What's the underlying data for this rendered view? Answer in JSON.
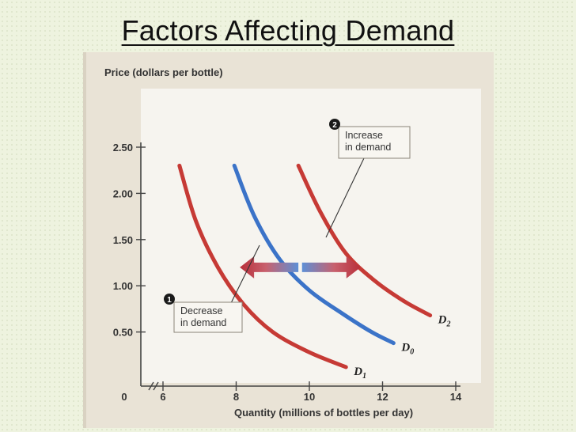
{
  "slide": {
    "title": "Factors Affecting Demand"
  },
  "chart_data": {
    "type": "line",
    "ylabel": "Price (dollars per bottle)",
    "xlabel": "Quantity (millions of bottles per day)",
    "xlim": [
      6,
      14
    ],
    "ylim": [
      0,
      2.5
    ],
    "x_ticks": [
      "0",
      "6",
      "8",
      "10",
      "12",
      "14"
    ],
    "y_ticks": [
      "2.50",
      "2.00",
      "1.50",
      "1.00",
      "0.50"
    ],
    "series": [
      {
        "name": "D1",
        "color": "#c63a35",
        "points": [
          [
            6.45,
            2.3
          ],
          [
            6.9,
            1.7
          ],
          [
            7.5,
            1.2
          ],
          [
            8.2,
            0.8
          ],
          [
            9.0,
            0.5
          ],
          [
            10.0,
            0.28
          ],
          [
            11.0,
            0.12
          ]
        ]
      },
      {
        "name": "D0",
        "color": "#3b73c8",
        "points": [
          [
            7.95,
            2.3
          ],
          [
            8.5,
            1.75
          ],
          [
            9.2,
            1.28
          ],
          [
            10.0,
            0.95
          ],
          [
            10.9,
            0.7
          ],
          [
            11.7,
            0.5
          ],
          [
            12.3,
            0.38
          ]
        ]
      },
      {
        "name": "D2",
        "color": "#c63a35",
        "points": [
          [
            9.7,
            2.3
          ],
          [
            10.3,
            1.8
          ],
          [
            11.0,
            1.35
          ],
          [
            11.8,
            1.05
          ],
          [
            12.6,
            0.83
          ],
          [
            13.3,
            0.68
          ]
        ]
      }
    ],
    "arrows": [
      {
        "direction": "left",
        "from": [
          9.7,
          1.2
        ],
        "to": [
          8.1,
          1.2
        ]
      },
      {
        "direction": "right",
        "from": [
          9.8,
          1.2
        ],
        "to": [
          11.4,
          1.2
        ]
      }
    ],
    "annotations": [
      {
        "number": "1",
        "lines": [
          "Decrease",
          "in demand"
        ]
      },
      {
        "number": "2",
        "lines": [
          "Increase",
          "in demand"
        ]
      }
    ]
  }
}
